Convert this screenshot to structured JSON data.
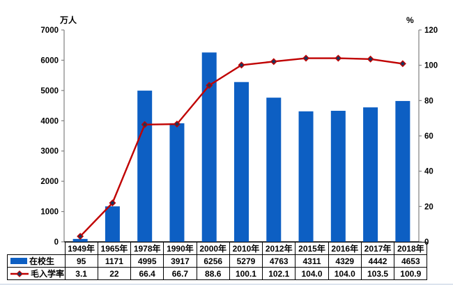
{
  "chart_data": {
    "type": "bar+line combo",
    "categories": [
      "1949年",
      "1965年",
      "1978年",
      "1990年",
      "2000年",
      "2010年",
      "2012年",
      "2015年",
      "2016年",
      "2017年",
      "2018年"
    ],
    "series": [
      {
        "name": "在校生",
        "type": "bar",
        "axis": "left",
        "values": [
          95,
          1171,
          4995,
          3917,
          6256,
          5279,
          4763,
          4311,
          4329,
          4442,
          4653
        ],
        "labels": [
          "95",
          "1171",
          "4995",
          "3917",
          "6256",
          "5279",
          "4763",
          "4311",
          "4329",
          "4442",
          "4653"
        ]
      },
      {
        "name": "毛入学率",
        "type": "line",
        "axis": "right",
        "values": [
          3.1,
          22,
          66.4,
          66.7,
          88.6,
          100.1,
          102.1,
          104.0,
          104.0,
          103.5,
          100.9
        ],
        "labels": [
          "3.1",
          "22",
          "66.4",
          "66.7",
          "88.6",
          "100.1",
          "102.1",
          "104.0",
          "104.0",
          "103.5",
          "100.9"
        ]
      }
    ],
    "left_axis": {
      "title": "万人",
      "min": 0,
      "max": 7000,
      "step": 1000
    },
    "right_axis": {
      "title": "%",
      "min": 0,
      "max": 120,
      "step": 20
    },
    "grid": false,
    "legend_position": "data-table-left-keys"
  },
  "colors": {
    "bar": "#0d5fc3",
    "line": "#c00000",
    "marker_fill": "#17375e",
    "axis_line": "#808080",
    "text": "#000000",
    "table_border": "#000000"
  }
}
